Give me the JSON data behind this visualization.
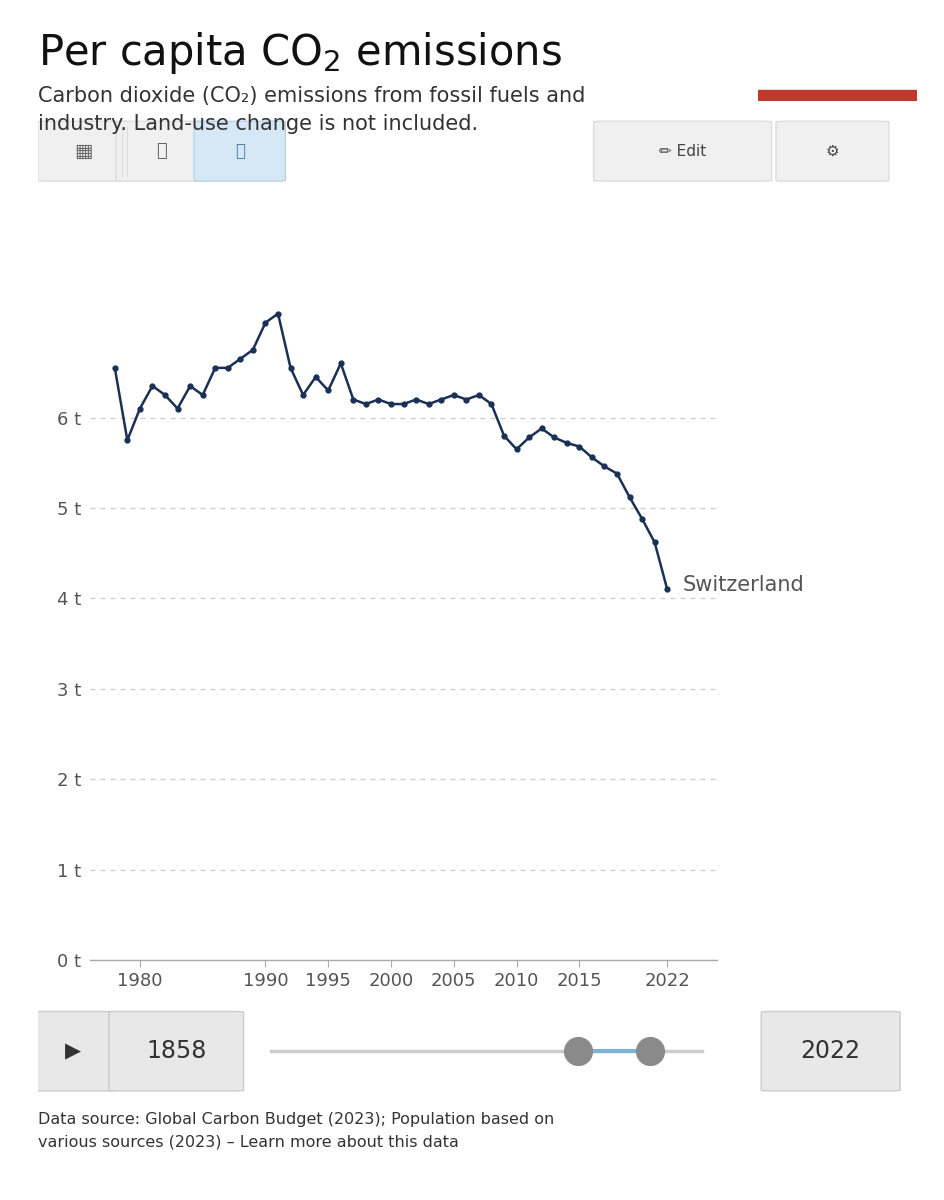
{
  "title": "Per capita CO$_2$ emissions",
  "subtitle_line1": "Carbon dioxide (CO₂) emissions from fossil fuels and",
  "subtitle_line2": "industry. Land-use change is not included.",
  "line_color": "#1a3055",
  "background_color": "#ffffff",
  "plot_bg_color": "#ffffff",
  "grid_color": "#cccccc",
  "ylim": [
    0,
    7.5
  ],
  "yticks": [
    0,
    1,
    2,
    3,
    4,
    5,
    6
  ],
  "xticks": [
    1980,
    1990,
    1995,
    2000,
    2005,
    2010,
    2015,
    2022
  ],
  "xlim": [
    1976,
    2026
  ],
  "label_country": "Switzerland",
  "owid_logo_bg": "#1a3055",
  "owid_logo_red": "#c0392b",
  "slider_left_year": "1858",
  "slider_right_year": "2022",
  "years": [
    1978,
    1979,
    1980,
    1981,
    1982,
    1983,
    1984,
    1985,
    1986,
    1987,
    1988,
    1989,
    1990,
    1991,
    1992,
    1993,
    1994,
    1995,
    1996,
    1997,
    1998,
    1999,
    2000,
    2001,
    2002,
    2003,
    2004,
    2005,
    2006,
    2007,
    2008,
    2009,
    2010,
    2011,
    2012,
    2013,
    2014,
    2015,
    2016,
    2017,
    2018,
    2019,
    2020,
    2021,
    2022
  ],
  "values": [
    6.55,
    5.75,
    6.1,
    6.35,
    6.25,
    6.1,
    6.35,
    6.25,
    6.55,
    6.55,
    6.65,
    6.75,
    7.05,
    7.15,
    6.55,
    6.25,
    6.45,
    6.3,
    6.6,
    6.2,
    6.15,
    6.2,
    6.15,
    6.15,
    6.2,
    6.15,
    6.2,
    6.25,
    6.2,
    6.25,
    6.15,
    5.8,
    5.65,
    5.78,
    5.88,
    5.78,
    5.72,
    5.68,
    5.56,
    5.46,
    5.38,
    5.12,
    4.88,
    4.62,
    4.1
  ],
  "title_fontsize": 30,
  "subtitle_fontsize": 15,
  "axis_tick_fontsize": 13,
  "country_label_fontsize": 15
}
